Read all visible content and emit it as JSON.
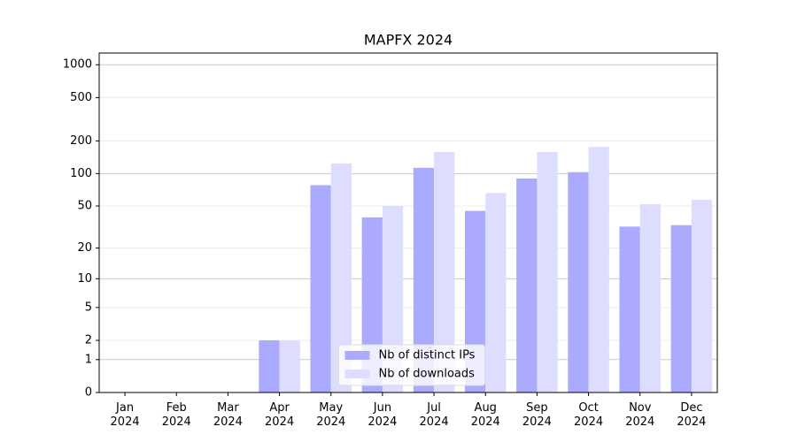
{
  "chart_data": {
    "type": "bar",
    "title": "MAPFX 2024",
    "categories": [
      "Jan 2024",
      "Feb 2024",
      "Mar 2024",
      "Apr 2024",
      "May 2024",
      "Jun 2024",
      "Jul 2024",
      "Aug 2024",
      "Sep 2024",
      "Oct 2024",
      "Nov 2024",
      "Dec 2024"
    ],
    "series": [
      {
        "name": "Nb of distinct IPs",
        "color": "#aaaaff",
        "values": [
          0,
          0,
          0,
          2,
          78,
          39,
          113,
          45,
          90,
          103,
          32,
          33
        ]
      },
      {
        "name": "Nb of downloads",
        "color": "#ddddff",
        "values": [
          0,
          0,
          0,
          2,
          124,
          50,
          158,
          66,
          158,
          176,
          52,
          57
        ]
      }
    ],
    "y_scale": "log1p",
    "ylim": [
      0,
      1280
    ],
    "yticks": [
      0,
      1,
      2,
      5,
      10,
      20,
      50,
      100,
      200,
      500,
      1000
    ],
    "grid": true,
    "legend": "lower center"
  }
}
